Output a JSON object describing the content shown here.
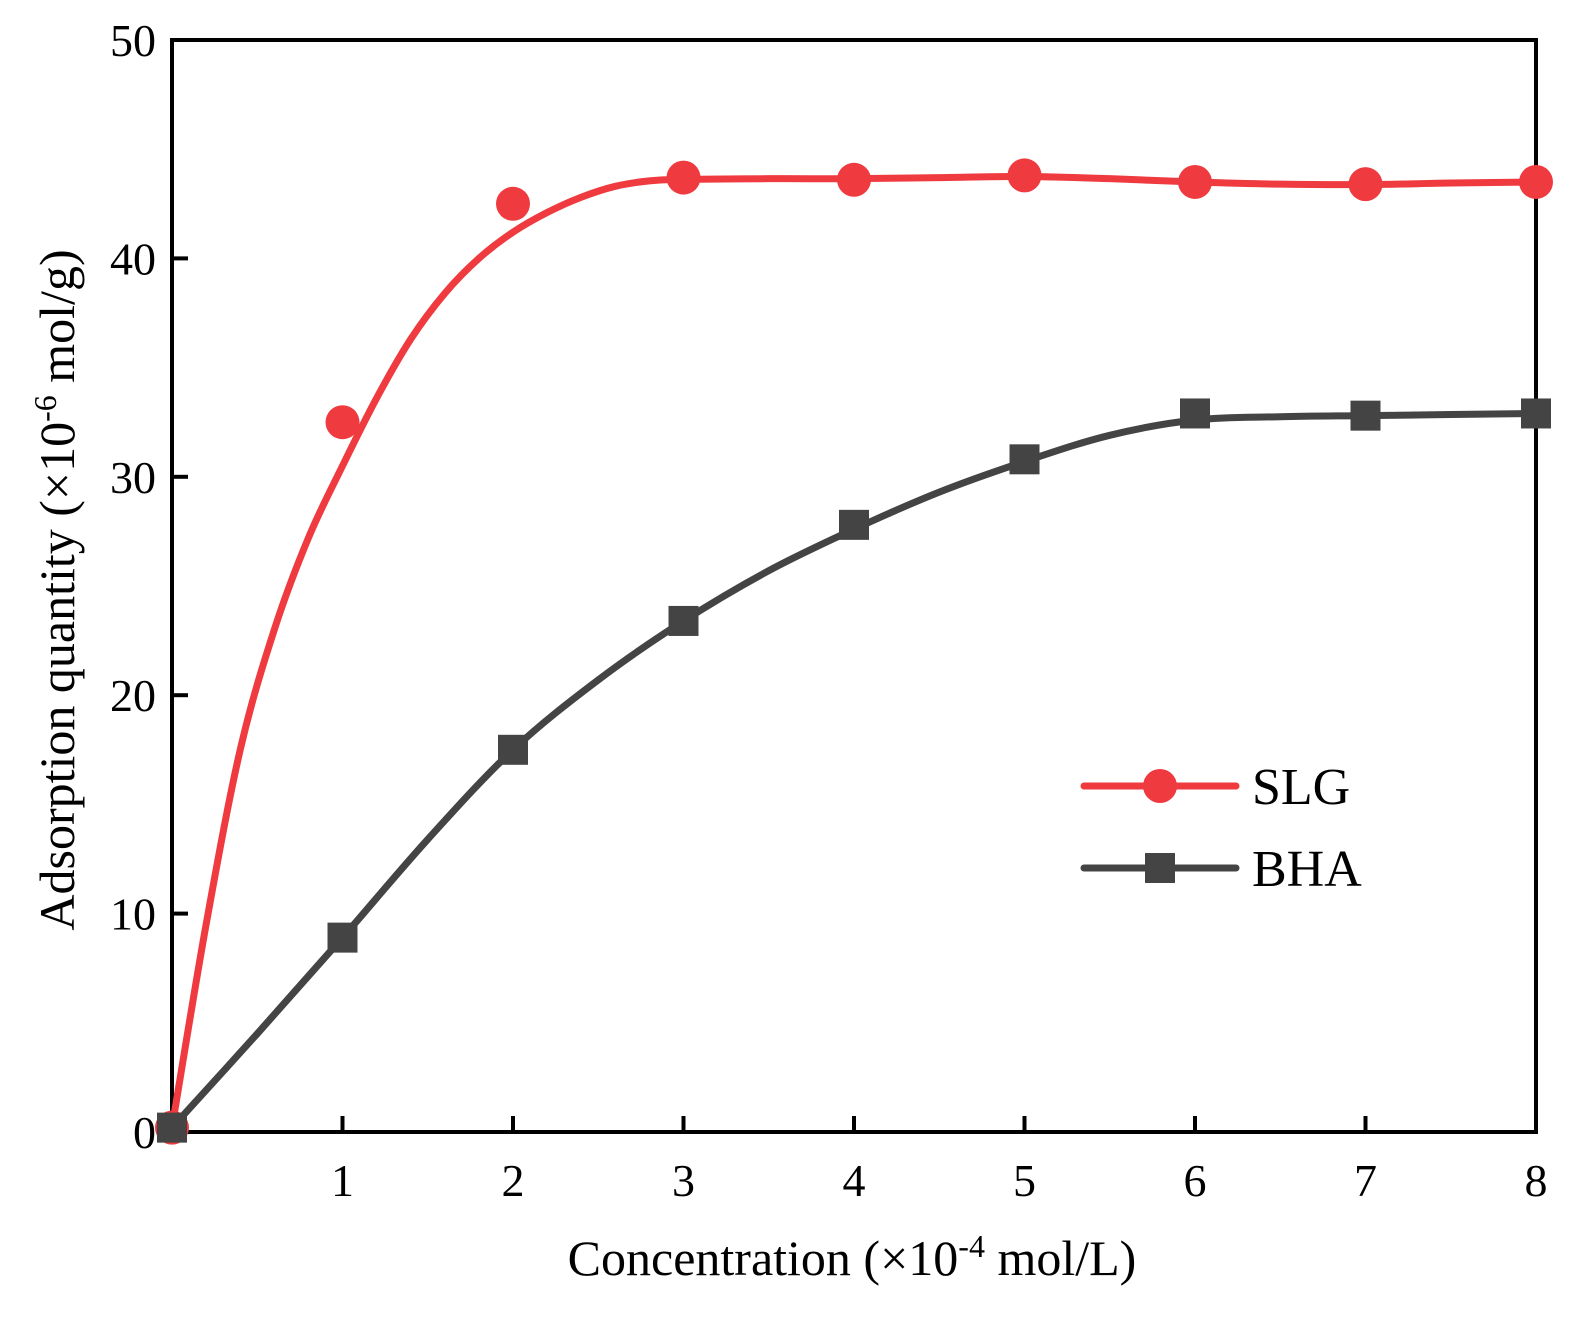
{
  "chart_data": {
    "type": "line",
    "xlabel": "Concentration (×10⁻⁴ mol/L)",
    "xlabel_main": "Concentration (×10",
    "xlabel_sup": "-4",
    "xlabel_tail": " mol/L)",
    "ylabel": "Adsorption quantity (×10⁻⁶ mol/g)",
    "ylabel_main": "Adsorption quantity (×10",
    "ylabel_sup": "-6",
    "ylabel_tail": " mol/g)",
    "xlim": [
      0,
      8
    ],
    "ylim": [
      0,
      50
    ],
    "x_ticks": [
      1,
      2,
      3,
      4,
      5,
      6,
      7,
      8
    ],
    "y_ticks": [
      0,
      10,
      20,
      30,
      40,
      50
    ],
    "grid": false,
    "legend_position": "right",
    "series": [
      {
        "name": "SLG",
        "color": "#ef3b3f",
        "marker": "circle",
        "x": [
          0,
          1,
          2,
          3,
          4,
          5,
          6,
          7,
          8
        ],
        "y": [
          0.2,
          32.5,
          42.5,
          43.7,
          43.6,
          43.8,
          43.5,
          43.4,
          43.5
        ],
        "fit_curve": [
          [
            0,
            0.2
          ],
          [
            0.2,
            9.5
          ],
          [
            0.4,
            17.5
          ],
          [
            0.6,
            23.0
          ],
          [
            0.8,
            27.2
          ],
          [
            1.0,
            30.5
          ],
          [
            1.2,
            33.6
          ],
          [
            1.4,
            36.3
          ],
          [
            1.6,
            38.4
          ],
          [
            1.8,
            40.0
          ],
          [
            2.0,
            41.2
          ],
          [
            2.2,
            42.1
          ],
          [
            2.4,
            42.8
          ],
          [
            2.6,
            43.3
          ],
          [
            2.8,
            43.55
          ],
          [
            3.0,
            43.62
          ],
          [
            3.5,
            43.65
          ],
          [
            4.0,
            43.65
          ],
          [
            4.5,
            43.7
          ],
          [
            5.0,
            43.75
          ],
          [
            5.5,
            43.65
          ],
          [
            6.0,
            43.5
          ],
          [
            6.5,
            43.4
          ],
          [
            7.0,
            43.38
          ],
          [
            7.5,
            43.45
          ],
          [
            8.0,
            43.5
          ]
        ]
      },
      {
        "name": "BHA",
        "color": "#444444",
        "marker": "square",
        "x": [
          0,
          1,
          2,
          3,
          4,
          5,
          6,
          7,
          8
        ],
        "y": [
          0.2,
          8.9,
          17.5,
          23.4,
          27.8,
          30.8,
          32.9,
          32.8,
          32.9
        ],
        "fit_curve": [
          [
            0,
            0.2
          ],
          [
            0.5,
            4.5
          ],
          [
            1.0,
            8.9
          ],
          [
            1.5,
            13.4
          ],
          [
            2.0,
            17.5
          ],
          [
            2.5,
            20.7
          ],
          [
            3.0,
            23.4
          ],
          [
            3.5,
            25.7
          ],
          [
            4.0,
            27.6
          ],
          [
            4.5,
            29.3
          ],
          [
            5.0,
            30.7
          ],
          [
            5.5,
            31.9
          ],
          [
            6.0,
            32.6
          ],
          [
            6.5,
            32.75
          ],
          [
            7.0,
            32.8
          ],
          [
            7.5,
            32.85
          ],
          [
            8.0,
            32.9
          ]
        ]
      }
    ]
  }
}
